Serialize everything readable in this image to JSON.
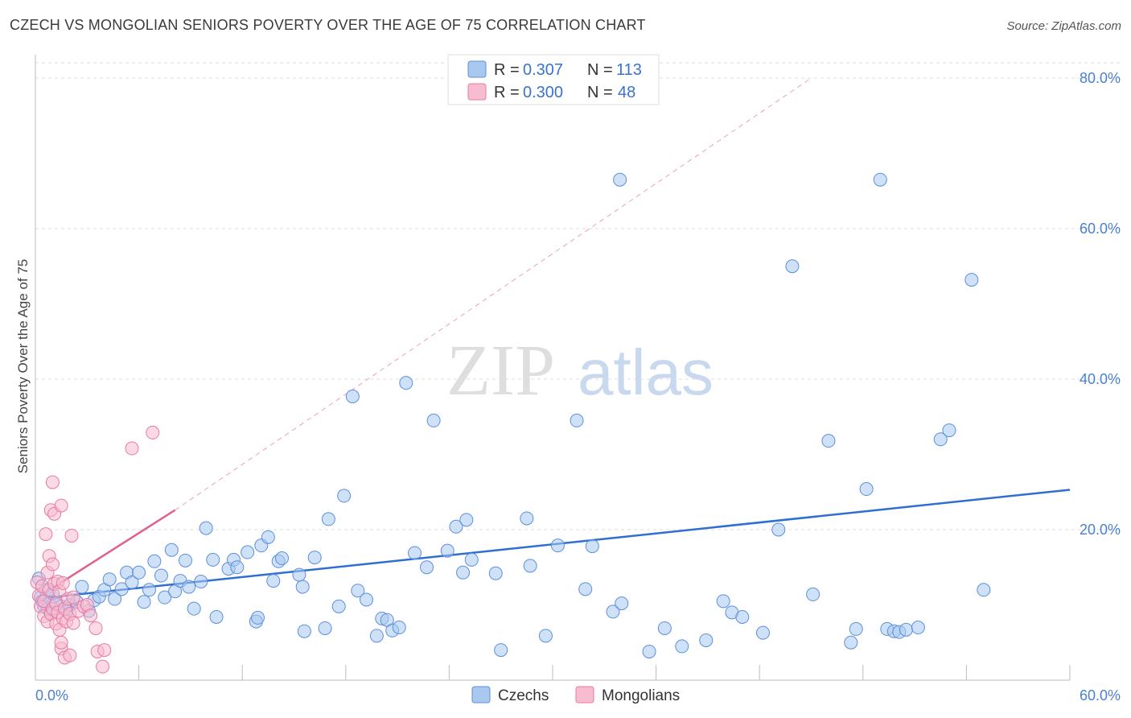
{
  "title": "CZECH VS MONGOLIAN SENIORS POVERTY OVER THE AGE OF 75 CORRELATION CHART",
  "source": "Source: ZipAtlas.com",
  "watermark": {
    "zip": "ZIP",
    "atlas": "atlas"
  },
  "legend": {
    "r_label": "R =",
    "n_label": "N =",
    "items": [
      {
        "name": "Czechs",
        "r": "0.307",
        "n": "113",
        "color": "#a8c8f0",
        "stroke": "#5b8fdc"
      },
      {
        "name": "Mongolians",
        "r": "0.300",
        "n": "48",
        "color": "#f8bcd0",
        "stroke": "#e87aa0"
      }
    ]
  },
  "chart_data": {
    "type": "scatter",
    "title": "CZECH VS MONGOLIAN SENIORS POVERTY OVER THE AGE OF 75 CORRELATION CHART",
    "xlabel": "",
    "ylabel": "Seniors Poverty Over the Age of 75",
    "xlim": [
      0,
      60
    ],
    "ylim": [
      0,
      82
    ],
    "x_tick_labels": [
      "0.0%",
      "60.0%"
    ],
    "y_ticks": [
      {
        "value": 20,
        "label": "20.0%"
      },
      {
        "value": 40,
        "label": "40.0%"
      },
      {
        "value": 60,
        "label": "60.0%"
      },
      {
        "value": 80,
        "label": "80.0%"
      }
    ],
    "series": [
      {
        "name": "Czechs",
        "color": "#5b8fdc",
        "fill": "#a8c8f0",
        "trend": {
          "x0": 0,
          "y0": 10.8,
          "x1": 60,
          "y1": 25.3,
          "color": "#2f6fd0"
        },
        "points": [
          [
            0.2,
            13.5
          ],
          [
            0.3,
            11.0
          ],
          [
            0.4,
            10.5
          ],
          [
            0.5,
            9.8
          ],
          [
            0.6,
            12.0
          ],
          [
            0.7,
            9.5
          ],
          [
            0.8,
            10.2
          ],
          [
            0.9,
            9.0
          ],
          [
            1.0,
            11.5
          ],
          [
            1.2,
            10.0
          ],
          [
            1.5,
            9.8
          ],
          [
            1.8,
            9.2
          ],
          [
            2.0,
            10.0
          ],
          [
            2.4,
            10.4
          ],
          [
            2.7,
            12.4
          ],
          [
            3.1,
            9.2
          ],
          [
            3.4,
            10.6
          ],
          [
            3.7,
            11.1
          ],
          [
            4.0,
            12.0
          ],
          [
            4.3,
            13.4
          ],
          [
            4.6,
            10.8
          ],
          [
            5.0,
            12.1
          ],
          [
            5.3,
            14.3
          ],
          [
            5.6,
            13.0
          ],
          [
            6.0,
            14.3
          ],
          [
            6.3,
            10.4
          ],
          [
            6.6,
            12.0
          ],
          [
            6.9,
            15.8
          ],
          [
            7.3,
            13.9
          ],
          [
            7.5,
            11.0
          ],
          [
            7.9,
            17.3
          ],
          [
            8.1,
            11.8
          ],
          [
            8.4,
            13.2
          ],
          [
            8.7,
            15.9
          ],
          [
            8.9,
            12.4
          ],
          [
            9.2,
            9.5
          ],
          [
            9.6,
            13.1
          ],
          [
            9.9,
            20.2
          ],
          [
            10.3,
            16.0
          ],
          [
            10.5,
            8.4
          ],
          [
            11.2,
            14.8
          ],
          [
            11.5,
            16.0
          ],
          [
            11.7,
            15.0
          ],
          [
            12.3,
            17.0
          ],
          [
            12.8,
            7.8
          ],
          [
            12.9,
            8.3
          ],
          [
            13.1,
            17.9
          ],
          [
            13.5,
            19.0
          ],
          [
            13.8,
            13.2
          ],
          [
            14.1,
            15.8
          ],
          [
            14.3,
            16.2
          ],
          [
            15.3,
            14.0
          ],
          [
            15.5,
            12.4
          ],
          [
            15.6,
            6.5
          ],
          [
            16.2,
            16.3
          ],
          [
            16.8,
            6.9
          ],
          [
            17.0,
            21.4
          ],
          [
            17.6,
            9.8
          ],
          [
            17.9,
            24.5
          ],
          [
            18.4,
            37.7
          ],
          [
            18.7,
            11.9
          ],
          [
            19.2,
            10.7
          ],
          [
            19.8,
            5.9
          ],
          [
            20.1,
            8.2
          ],
          [
            20.4,
            8.0
          ],
          [
            20.7,
            6.6
          ],
          [
            21.1,
            7.0
          ],
          [
            21.5,
            39.5
          ],
          [
            22.0,
            16.9
          ],
          [
            22.7,
            15.0
          ],
          [
            23.1,
            34.5
          ],
          [
            23.9,
            17.2
          ],
          [
            24.4,
            20.4
          ],
          [
            24.8,
            14.3
          ],
          [
            25.0,
            21.3
          ],
          [
            25.3,
            16.0
          ],
          [
            26.7,
            14.2
          ],
          [
            27.0,
            4.0
          ],
          [
            28.5,
            21.5
          ],
          [
            28.7,
            15.2
          ],
          [
            29.6,
            5.9
          ],
          [
            30.3,
            17.9
          ],
          [
            31.4,
            34.5
          ],
          [
            31.9,
            12.1
          ],
          [
            32.3,
            17.8
          ],
          [
            33.5,
            9.1
          ],
          [
            33.9,
            66.5
          ],
          [
            34.0,
            10.2
          ],
          [
            35.6,
            3.8
          ],
          [
            36.5,
            6.9
          ],
          [
            37.5,
            4.5
          ],
          [
            38.9,
            5.3
          ],
          [
            39.9,
            10.5
          ],
          [
            40.4,
            9.0
          ],
          [
            41.0,
            8.4
          ],
          [
            42.2,
            6.3
          ],
          [
            43.1,
            20.0
          ],
          [
            43.9,
            55.0
          ],
          [
            45.1,
            11.4
          ],
          [
            46.0,
            31.8
          ],
          [
            47.3,
            5.0
          ],
          [
            47.6,
            6.8
          ],
          [
            48.2,
            25.4
          ],
          [
            49.0,
            66.5
          ],
          [
            49.4,
            6.8
          ],
          [
            49.8,
            6.5
          ],
          [
            50.1,
            6.4
          ],
          [
            50.5,
            6.7
          ],
          [
            51.2,
            7.0
          ],
          [
            52.5,
            32.0
          ],
          [
            53.0,
            33.2
          ],
          [
            54.3,
            53.2
          ],
          [
            55.0,
            12.0
          ]
        ]
      },
      {
        "name": "Mongolians",
        "color": "#e87aa0",
        "fill": "#f8bcd0",
        "trend": {
          "x0": 0,
          "y0": 10.8,
          "x1": 8.1,
          "y1": 22.6,
          "color": "#e06090",
          "dashed_to": {
            "x": 45.0,
            "y": 80.0
          }
        },
        "points": [
          [
            0.1,
            13.0
          ],
          [
            0.2,
            11.2
          ],
          [
            0.3,
            9.8
          ],
          [
            0.4,
            12.5
          ],
          [
            0.5,
            10.5
          ],
          [
            0.5,
            8.5
          ],
          [
            0.6,
            19.4
          ],
          [
            0.7,
            7.8
          ],
          [
            0.7,
            14.3
          ],
          [
            0.8,
            16.5
          ],
          [
            0.8,
            12.0
          ],
          [
            0.9,
            8.8
          ],
          [
            0.9,
            22.6
          ],
          [
            1.0,
            26.3
          ],
          [
            1.0,
            15.4
          ],
          [
            1.0,
            9.5
          ],
          [
            1.1,
            22.1
          ],
          [
            1.1,
            12.8
          ],
          [
            1.2,
            10.2
          ],
          [
            1.2,
            7.5
          ],
          [
            1.3,
            13.1
          ],
          [
            1.3,
            9.0
          ],
          [
            1.4,
            6.7
          ],
          [
            1.4,
            11.8
          ],
          [
            1.5,
            4.2
          ],
          [
            1.5,
            23.2
          ],
          [
            1.5,
            5.0
          ],
          [
            1.6,
            8.2
          ],
          [
            1.6,
            12.9
          ],
          [
            1.7,
            3.0
          ],
          [
            1.7,
            9.5
          ],
          [
            1.8,
            7.8
          ],
          [
            1.9,
            10.8
          ],
          [
            2.0,
            3.3
          ],
          [
            2.0,
            8.8
          ],
          [
            2.1,
            19.2
          ],
          [
            2.2,
            11.0
          ],
          [
            2.2,
            7.6
          ],
          [
            2.5,
            9.2
          ],
          [
            2.8,
            9.8
          ],
          [
            3.0,
            10.0
          ],
          [
            3.2,
            8.6
          ],
          [
            3.5,
            6.9
          ],
          [
            3.6,
            3.8
          ],
          [
            3.9,
            1.8
          ],
          [
            4.0,
            4.0
          ],
          [
            5.6,
            30.8
          ],
          [
            6.8,
            32.9
          ]
        ]
      }
    ]
  },
  "bottom_legend": [
    "Czechs",
    "Mongolians"
  ]
}
